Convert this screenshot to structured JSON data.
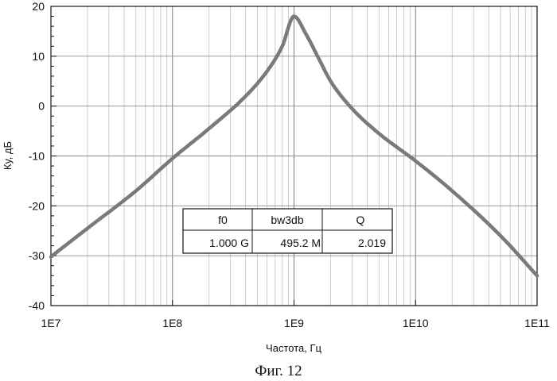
{
  "chart_data": {
    "type": "line",
    "title": "",
    "xlabel": "Частота, Гц",
    "ylabel": "Ку, дБ",
    "xscale": "log",
    "xlim": [
      10000000,
      100000000000
    ],
    "ylim": [
      -40,
      20
    ],
    "xticks": [
      "1E7",
      "1E8",
      "1E9",
      "1E10",
      "1E11"
    ],
    "yticks": [
      "20",
      "10",
      "0",
      "-10",
      "-20",
      "-30",
      "-40"
    ],
    "grid": true,
    "series": [
      {
        "color": "#7a7a7a",
        "x": [
          10000000,
          20000000,
          50000000,
          100000000,
          200000000,
          400000000,
          600000000,
          800000000,
          1000000000,
          1250000000,
          1600000000,
          2000000000,
          3000000000,
          5000000000,
          10000000000,
          20000000000,
          50000000000,
          100000000000
        ],
        "y": [
          -30.2,
          -24.5,
          -17.0,
          -10.5,
          -4.5,
          2.0,
          7.0,
          12.0,
          18.0,
          14.5,
          9.5,
          5.0,
          -0.5,
          -5.5,
          -11.0,
          -17.0,
          -26.0,
          -34.0
        ]
      }
    ],
    "table": {
      "headers": [
        "f0",
        "bw3db",
        "Q"
      ],
      "values": [
        "1.000 G",
        "495.2 M",
        "2.019"
      ]
    }
  },
  "caption": "Фиг. 12"
}
